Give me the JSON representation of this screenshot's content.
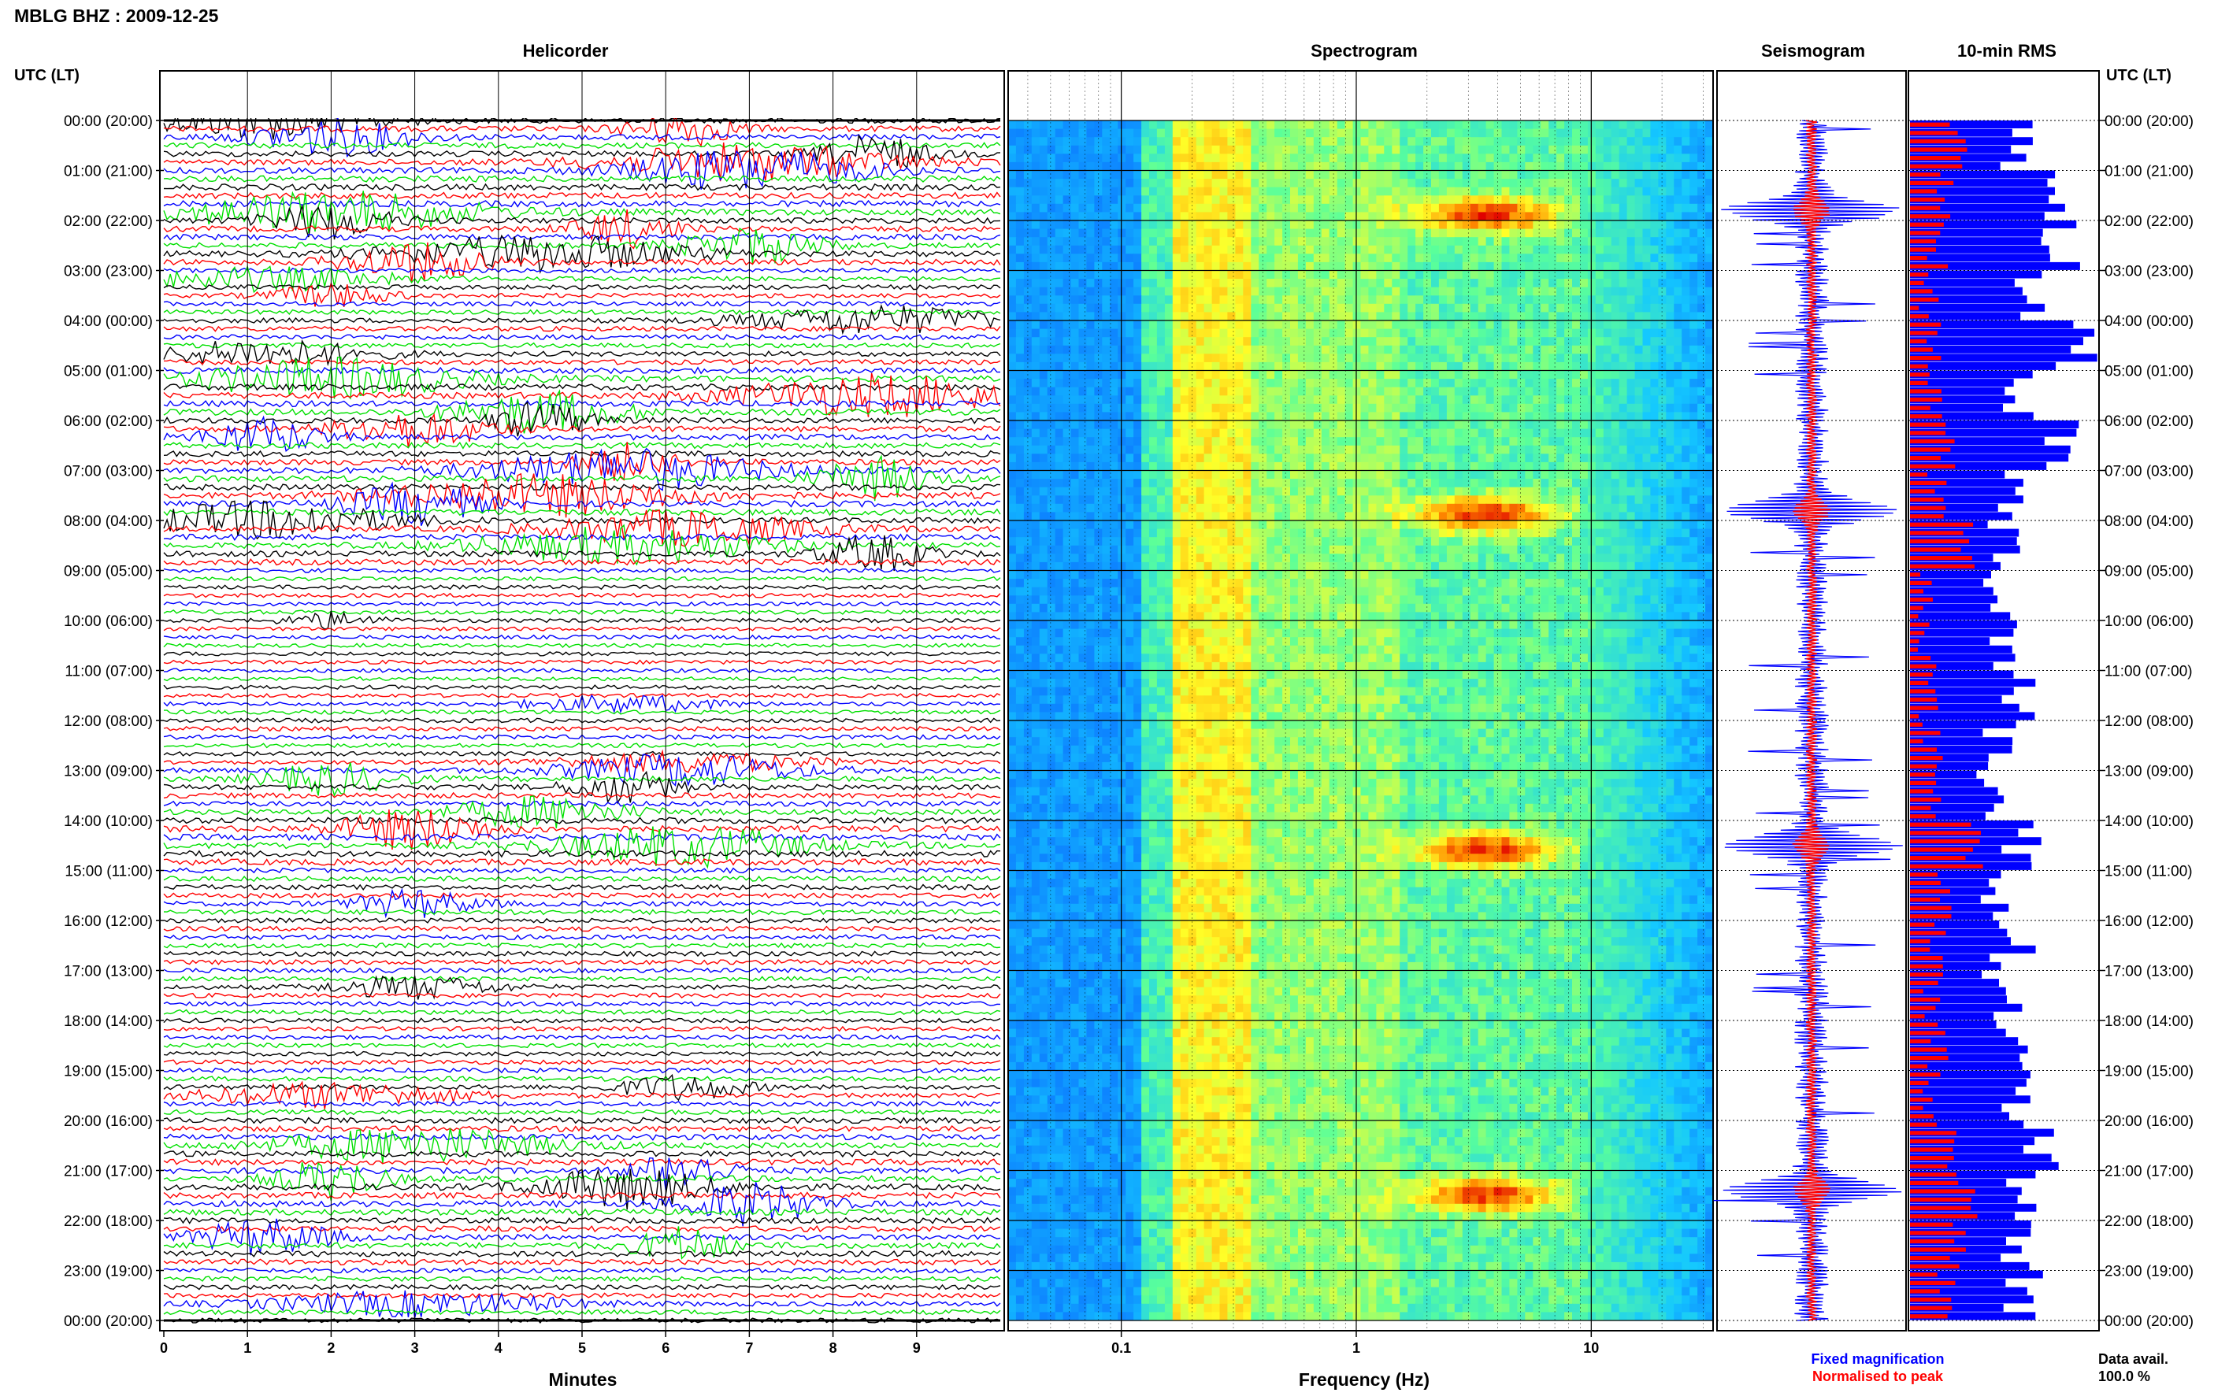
{
  "header": {
    "station_title": "MBLG BHZ : 2009-12-25",
    "time_axis_label": "UTC (LT)"
  },
  "panels": {
    "helicorder": "Helicorder",
    "spectrogram": "Spectrogram",
    "seismogram": "Seismogram",
    "rms": "10-min RMS"
  },
  "axes": {
    "helicorder_xlabel": "Minutes",
    "spectrogram_xlabel": "Frequency (Hz)"
  },
  "legend": {
    "fixed": "Fixed magnification",
    "normalised": "Normalised to peak",
    "fixed_color": "#0000ff",
    "normalised_color": "#ff0000"
  },
  "availability": {
    "label": "Data avail.",
    "value": "100.0 %"
  },
  "chart_data": [
    {
      "type": "line",
      "panel": "Helicorder",
      "xlabel": "Minutes",
      "x_ticks": [
        "0",
        "1",
        "2",
        "3",
        "4",
        "5",
        "6",
        "7",
        "8",
        "9"
      ],
      "xlim": [
        0,
        10
      ],
      "traces_per_hour": 6,
      "trace_colors": [
        "#000000",
        "#ff0000",
        "#0000ff",
        "#00e000"
      ],
      "time_labels": [
        "00:00 (20:00)",
        "01:00 (21:00)",
        "02:00 (22:00)",
        "03:00 (23:00)",
        "04:00 (00:00)",
        "05:00 (01:00)",
        "06:00 (02:00)",
        "07:00 (03:00)",
        "08:00 (04:00)",
        "09:00 (05:00)",
        "10:00 (06:00)",
        "11:00 (07:00)",
        "12:00 (08:00)",
        "13:00 (09:00)",
        "14:00 (10:00)",
        "15:00 (11:00)",
        "16:00 (12:00)",
        "17:00 (13:00)",
        "18:00 (14:00)",
        "19:00 (15:00)",
        "20:00 (16:00)",
        "21:00 (17:00)",
        "22:00 (18:00)",
        "23:00 (19:00)",
        "00:00 (20:00)"
      ],
      "activity_by_hour": [
        0.8,
        0.9,
        0.8,
        0.5,
        0.6,
        0.9,
        0.8,
        0.9,
        0.8,
        0.4,
        0.35,
        0.35,
        0.45,
        0.7,
        0.9,
        0.6,
        0.55,
        0.5,
        0.45,
        0.55,
        0.8,
        0.9,
        0.8,
        0.55
      ]
    },
    {
      "type": "heatmap",
      "panel": "Spectrogram",
      "xlabel": "Frequency (Hz)",
      "x_scale": "log",
      "xlim": [
        0.033,
        33
      ],
      "x_ticks": [
        "0.1",
        "1",
        "10"
      ],
      "colormap": [
        "#0000c8",
        "#0a64ff",
        "#14c8ff",
        "#5aff9a",
        "#ffff28",
        "#ff8c00",
        "#e00000"
      ],
      "strong_events_utc_hours": [
        1.8,
        7.8,
        14.5,
        21.4
      ]
    },
    {
      "type": "line",
      "panel": "Seismogram",
      "series": [
        {
          "name": "Fixed magnification",
          "color": "#0000ff"
        },
        {
          "name": "Normalised to peak",
          "color": "#ff0000"
        }
      ]
    },
    {
      "type": "bar",
      "panel": "10-min RMS",
      "orientation": "horizontal",
      "xlim": [
        0,
        1
      ],
      "bins": 144,
      "fixed_magnification_hourly": [
        0.6,
        0.8,
        0.8,
        0.65,
        0.9,
        0.6,
        0.8,
        0.55,
        0.5,
        0.45,
        0.55,
        0.55,
        0.5,
        0.45,
        0.6,
        0.5,
        0.55,
        0.5,
        0.55,
        0.55,
        0.7,
        0.55,
        0.6,
        0.6
      ],
      "normalised_to_peak_hourly": [
        0.25,
        0.2,
        0.15,
        0.1,
        0.12,
        0.15,
        0.2,
        0.15,
        0.3,
        0.1,
        0.1,
        0.1,
        0.12,
        0.15,
        0.35,
        0.2,
        0.15,
        0.12,
        0.15,
        0.12,
        0.2,
        0.3,
        0.25,
        0.2
      ],
      "series": [
        {
          "name": "Fixed magnification",
          "color": "#0000ff"
        },
        {
          "name": "Normalised to peak",
          "color": "#ff0000"
        }
      ]
    }
  ]
}
